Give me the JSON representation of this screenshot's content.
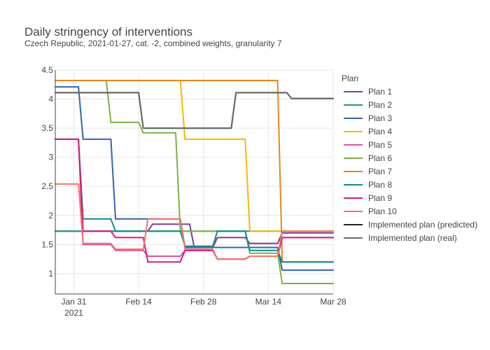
{
  "chart_data": {
    "type": "line",
    "title": "Daily stringency of interventions",
    "subtitle": "Czech Republic, 2021-01-27, cat. -2, combined weights, granularity 7",
    "xlabel": "",
    "ylabel": "",
    "x_range": [
      "2021-01-27",
      "2021-03-28"
    ],
    "ylim": [
      0.65,
      4.5
    ],
    "grid": true,
    "legend_title": "Plan",
    "legend_placement": "right",
    "x_ticks": [
      {
        "date": "2021-01-31",
        "label": "Jan 31",
        "sublabel": "2021"
      },
      {
        "date": "2021-02-14",
        "label": "Feb 14",
        "sublabel": ""
      },
      {
        "date": "2021-02-28",
        "label": "Feb 28",
        "sublabel": ""
      },
      {
        "date": "2021-03-14",
        "label": "Mar 14",
        "sublabel": ""
      },
      {
        "date": "2021-03-28",
        "label": "Mar 28",
        "sublabel": ""
      }
    ],
    "y_ticks": [
      {
        "value": 1,
        "label": "1"
      },
      {
        "value": 1.5,
        "label": "1.5"
      },
      {
        "value": 2,
        "label": "2"
      },
      {
        "value": 2.5,
        "label": "2.5"
      },
      {
        "value": 3,
        "label": "3"
      },
      {
        "value": 3.5,
        "label": "3.5"
      },
      {
        "value": 4,
        "label": "4"
      },
      {
        "value": 4.5,
        "label": "4.5"
      }
    ],
    "series": [
      {
        "name": "Plan 1",
        "color": "#7b3f98",
        "points": [
          [
            "2021-01-27",
            1.73
          ],
          [
            "2021-02-09",
            1.73
          ],
          [
            "2021-02-10",
            1.73
          ],
          [
            "2021-02-16",
            1.73
          ],
          [
            "2021-02-17",
            1.85
          ],
          [
            "2021-02-25",
            1.85
          ],
          [
            "2021-02-26",
            1.45
          ],
          [
            "2021-03-02",
            1.45
          ],
          [
            "2021-03-03",
            1.62
          ],
          [
            "2021-03-09",
            1.62
          ],
          [
            "2021-03-10",
            1.52
          ],
          [
            "2021-03-16",
            1.52
          ],
          [
            "2021-03-17",
            1.7
          ],
          [
            "2021-03-28",
            1.7
          ]
        ]
      },
      {
        "name": "Plan 2",
        "color": "#1a9b7b",
        "points": [
          [
            "2021-01-27",
            1.73
          ],
          [
            "2021-02-09",
            1.73
          ],
          [
            "2021-02-10",
            1.73
          ],
          [
            "2021-02-16",
            1.73
          ],
          [
            "2021-02-17",
            1.73
          ],
          [
            "2021-02-25",
            1.73
          ],
          [
            "2021-02-26",
            1.73
          ],
          [
            "2021-03-02",
            1.73
          ],
          [
            "2021-03-03",
            1.73
          ],
          [
            "2021-03-09",
            1.73
          ],
          [
            "2021-03-10",
            1.73
          ],
          [
            "2021-03-16",
            1.73
          ],
          [
            "2021-03-17",
            1.73
          ],
          [
            "2021-03-28",
            1.73
          ]
        ]
      },
      {
        "name": "Plan 3",
        "color": "#3366aa",
        "points": [
          [
            "2021-01-27",
            4.21
          ],
          [
            "2021-02-01",
            4.21
          ],
          [
            "2021-02-02",
            3.31
          ],
          [
            "2021-02-08",
            3.31
          ],
          [
            "2021-02-09",
            1.94
          ],
          [
            "2021-02-15",
            1.94
          ],
          [
            "2021-02-16",
            1.94
          ],
          [
            "2021-02-23",
            1.94
          ],
          [
            "2021-02-24",
            1.45
          ],
          [
            "2021-03-02",
            1.45
          ],
          [
            "2021-03-03",
            1.45
          ],
          [
            "2021-03-16",
            1.45
          ],
          [
            "2021-03-17",
            1.06
          ],
          [
            "2021-03-28",
            1.06
          ]
        ]
      },
      {
        "name": "Plan 4",
        "color": "#f5b800",
        "points": [
          [
            "2021-01-27",
            4.32
          ],
          [
            "2021-02-23",
            4.32
          ],
          [
            "2021-02-24",
            3.31
          ],
          [
            "2021-03-09",
            3.31
          ],
          [
            "2021-03-10",
            1.73
          ],
          [
            "2021-03-15",
            1.73
          ],
          [
            "2021-03-16",
            1.73
          ],
          [
            "2021-03-17",
            1.73
          ],
          [
            "2021-03-28",
            1.73
          ]
        ]
      },
      {
        "name": "Plan 5",
        "color": "#e0529c",
        "points": [
          [
            "2021-01-27",
            3.31
          ],
          [
            "2021-02-01",
            3.31
          ],
          [
            "2021-02-02",
            1.5
          ],
          [
            "2021-02-08",
            1.5
          ],
          [
            "2021-02-09",
            1.4
          ],
          [
            "2021-02-15",
            1.4
          ],
          [
            "2021-02-16",
            1.3
          ],
          [
            "2021-02-23",
            1.3
          ],
          [
            "2021-02-24",
            1.4
          ],
          [
            "2021-03-02",
            1.4
          ],
          [
            "2021-03-03",
            1.25
          ],
          [
            "2021-03-09",
            1.25
          ],
          [
            "2021-03-10",
            1.3
          ],
          [
            "2021-03-16",
            1.3
          ],
          [
            "2021-03-17",
            1.62
          ],
          [
            "2021-03-28",
            1.62
          ]
        ]
      },
      {
        "name": "Plan 6",
        "color": "#7cb342",
        "points": [
          [
            "2021-01-27",
            4.32
          ],
          [
            "2021-02-07",
            4.32
          ],
          [
            "2021-02-08",
            3.6
          ],
          [
            "2021-02-14",
            3.6
          ],
          [
            "2021-02-15",
            3.42
          ],
          [
            "2021-02-22",
            3.42
          ],
          [
            "2021-02-23",
            1.73
          ],
          [
            "2021-03-02",
            1.73
          ],
          [
            "2021-03-03",
            1.73
          ],
          [
            "2021-03-09",
            1.73
          ],
          [
            "2021-03-10",
            1.35
          ],
          [
            "2021-03-16",
            1.35
          ],
          [
            "2021-03-17",
            0.83
          ],
          [
            "2021-03-28",
            0.83
          ]
        ]
      },
      {
        "name": "Plan 7",
        "color": "#e8861a",
        "points": [
          [
            "2021-01-27",
            4.32
          ],
          [
            "2021-03-15",
            4.32
          ],
          [
            "2021-03-16",
            4.32
          ],
          [
            "2021-03-17",
            1.2
          ],
          [
            "2021-03-28",
            1.2
          ]
        ]
      },
      {
        "name": "Plan 8",
        "color": "#0f8c8c",
        "points": [
          [
            "2021-01-27",
            3.31
          ],
          [
            "2021-02-01",
            3.31
          ],
          [
            "2021-02-02",
            1.94
          ],
          [
            "2021-02-08",
            1.94
          ],
          [
            "2021-02-09",
            1.73
          ],
          [
            "2021-02-15",
            1.73
          ],
          [
            "2021-02-16",
            1.73
          ],
          [
            "2021-02-23",
            1.73
          ],
          [
            "2021-02-24",
            1.47
          ],
          [
            "2021-03-02",
            1.47
          ],
          [
            "2021-03-03",
            1.73
          ],
          [
            "2021-03-09",
            1.73
          ],
          [
            "2021-03-10",
            1.4
          ],
          [
            "2021-03-16",
            1.4
          ],
          [
            "2021-03-17",
            1.2
          ],
          [
            "2021-03-28",
            1.2
          ]
        ]
      },
      {
        "name": "Plan 9",
        "color": "#d81b7a",
        "points": [
          [
            "2021-01-27",
            3.31
          ],
          [
            "2021-02-01",
            3.31
          ],
          [
            "2021-02-02",
            1.73
          ],
          [
            "2021-02-08",
            1.73
          ],
          [
            "2021-02-09",
            1.62
          ],
          [
            "2021-02-15",
            1.62
          ],
          [
            "2021-02-16",
            1.2
          ],
          [
            "2021-02-23",
            1.2
          ],
          [
            "2021-02-24",
            1.4
          ],
          [
            "2021-03-02",
            1.4
          ],
          [
            "2021-03-03",
            1.25
          ],
          [
            "2021-03-09",
            1.25
          ],
          [
            "2021-03-10",
            1.3
          ],
          [
            "2021-03-16",
            1.3
          ],
          [
            "2021-03-17",
            1.62
          ],
          [
            "2021-03-28",
            1.62
          ]
        ]
      },
      {
        "name": "Plan 10",
        "color": "#f4736b",
        "points": [
          [
            "2021-01-27",
            2.54
          ],
          [
            "2021-02-01",
            2.54
          ],
          [
            "2021-02-02",
            1.52
          ],
          [
            "2021-02-08",
            1.52
          ],
          [
            "2021-02-09",
            1.42
          ],
          [
            "2021-02-15",
            1.42
          ],
          [
            "2021-02-16",
            1.94
          ],
          [
            "2021-02-23",
            1.94
          ],
          [
            "2021-02-24",
            1.42
          ],
          [
            "2021-03-02",
            1.42
          ],
          [
            "2021-03-03",
            1.25
          ],
          [
            "2021-03-09",
            1.25
          ],
          [
            "2021-03-10",
            1.3
          ],
          [
            "2021-03-16",
            1.3
          ],
          [
            "2021-03-17",
            1.73
          ],
          [
            "2021-03-28",
            1.73
          ]
        ]
      },
      {
        "name": "Implemented plan (predicted)",
        "color": "#222222",
        "points": [
          [
            "2021-01-27",
            4.11
          ],
          [
            "2021-02-14",
            4.11
          ],
          [
            "2021-02-15",
            3.5
          ],
          [
            "2021-03-06",
            3.5
          ],
          [
            "2021-03-07",
            4.11
          ],
          [
            "2021-03-18",
            4.11
          ],
          [
            "2021-03-19",
            4.01
          ],
          [
            "2021-03-28",
            4.01
          ]
        ]
      },
      {
        "name": "Implemented plan (real)",
        "color": "#6b6b6b",
        "points": [
          [
            "2021-01-27",
            4.11
          ],
          [
            "2021-02-14",
            4.11
          ],
          [
            "2021-02-15",
            3.5
          ],
          [
            "2021-03-06",
            3.5
          ],
          [
            "2021-03-07",
            4.11
          ],
          [
            "2021-03-18",
            4.11
          ],
          [
            "2021-03-19",
            4.01
          ],
          [
            "2021-03-28",
            4.01
          ]
        ]
      }
    ]
  }
}
